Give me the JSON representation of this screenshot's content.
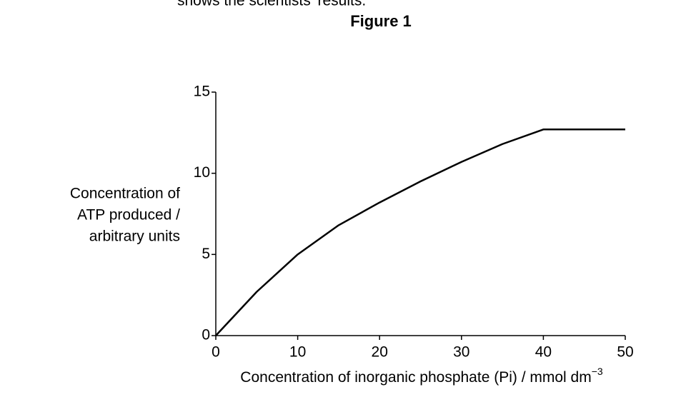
{
  "intro_text": "shows the scientists’ results.",
  "chart_data": {
    "type": "line",
    "title": "Figure 1",
    "ylabel": [
      "Concentration of",
      "ATP produced /",
      "arbitrary units"
    ],
    "xlabel": "Concentration of inorganic phosphate (Pi) / mmol dm",
    "xlabel_superscript": "−3",
    "x": [
      0,
      5,
      10,
      15,
      20,
      25,
      30,
      35,
      40,
      50
    ],
    "y": [
      0,
      2.7,
      5.0,
      6.8,
      8.2,
      9.5,
      10.7,
      11.8,
      12.7,
      12.7
    ],
    "color": "#000000",
    "xlim": [
      0,
      50
    ],
    "xticks": [
      0,
      10,
      20,
      30,
      40,
      50
    ],
    "ylim": [
      0,
      15
    ],
    "yticks": [
      0,
      5,
      10,
      15
    ],
    "grid": false
  }
}
